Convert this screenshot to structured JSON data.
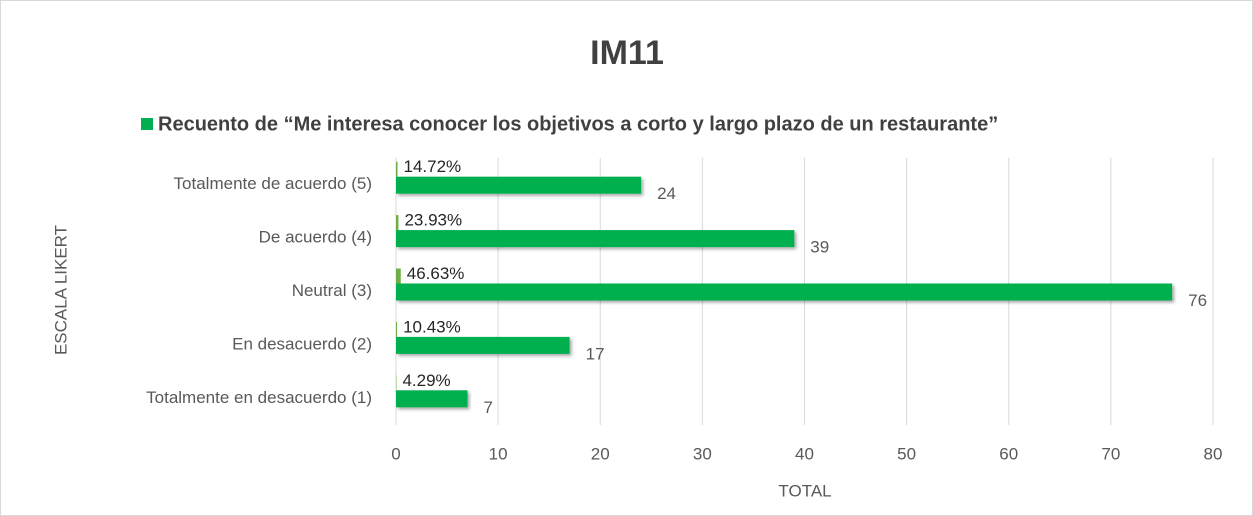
{
  "chart_data": {
    "type": "bar",
    "title": "IM11",
    "y_label": "ESCALA LIKERT",
    "x_label": "TOTAL",
    "categories": [
      "Totalmente de acuerdo (5)",
      "De acuerdo (4)",
      "Neutral (3)",
      "En desacuerdo (2)",
      "Totalmente en desacuerdo (1)"
    ],
    "series": [
      {
        "name": "Recuento de “Me interesa conocer los objetivos a corto y largo plazo de un restaurante”",
        "color": "#00b050",
        "values": [
          24,
          39,
          76,
          17,
          7
        ]
      },
      {
        "color": "#70ad47",
        "values": [
          0.1472,
          0.2393,
          0.4663,
          0.1043,
          0.0429
        ],
        "value_labels": [
          "14.72%",
          "23.93%",
          "46.63%",
          "10.43%",
          "4.29%"
        ]
      }
    ],
    "xlim": [
      0,
      80
    ],
    "xticks": [
      0,
      10,
      20,
      30,
      40,
      50,
      60,
      70,
      80
    ],
    "grid": true,
    "legend": "top"
  }
}
